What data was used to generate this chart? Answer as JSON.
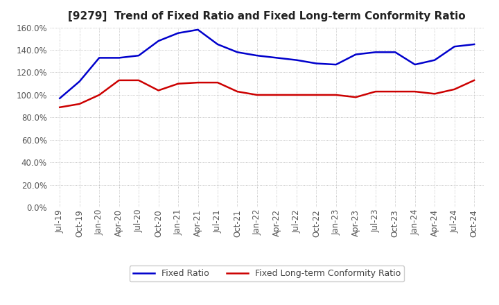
{
  "title": "[9279]  Trend of Fixed Ratio and Fixed Long-term Conformity Ratio",
  "x_labels": [
    "Jul-19",
    "Oct-19",
    "Jan-20",
    "Apr-20",
    "Jul-20",
    "Oct-20",
    "Jan-21",
    "Apr-21",
    "Jul-21",
    "Oct-21",
    "Jan-22",
    "Apr-22",
    "Jul-22",
    "Oct-22",
    "Jan-23",
    "Apr-23",
    "Jul-23",
    "Oct-23",
    "Jan-24",
    "Apr-24",
    "Jul-24",
    "Oct-24"
  ],
  "fixed_ratio": [
    97,
    112,
    133,
    133,
    135,
    148,
    155,
    158,
    145,
    138,
    135,
    133,
    131,
    128,
    127,
    136,
    138,
    138,
    127,
    131,
    143,
    145
  ],
  "fixed_lt_ratio": [
    89,
    92,
    100,
    113,
    113,
    104,
    110,
    111,
    111,
    103,
    100,
    100,
    100,
    100,
    100,
    98,
    103,
    103,
    103,
    101,
    105,
    113
  ],
  "ylim": [
    0,
    160
  ],
  "yticks": [
    0,
    20,
    40,
    60,
    80,
    100,
    120,
    140,
    160
  ],
  "fixed_ratio_color": "#0000CC",
  "fixed_lt_ratio_color": "#CC0000",
  "background_color": "#FFFFFF",
  "grid_color": "#AAAAAA",
  "legend_fixed_ratio": "Fixed Ratio",
  "legend_fixed_lt_ratio": "Fixed Long-term Conformity Ratio",
  "title_fontsize": 11,
  "tick_fontsize": 8.5,
  "legend_fontsize": 9
}
